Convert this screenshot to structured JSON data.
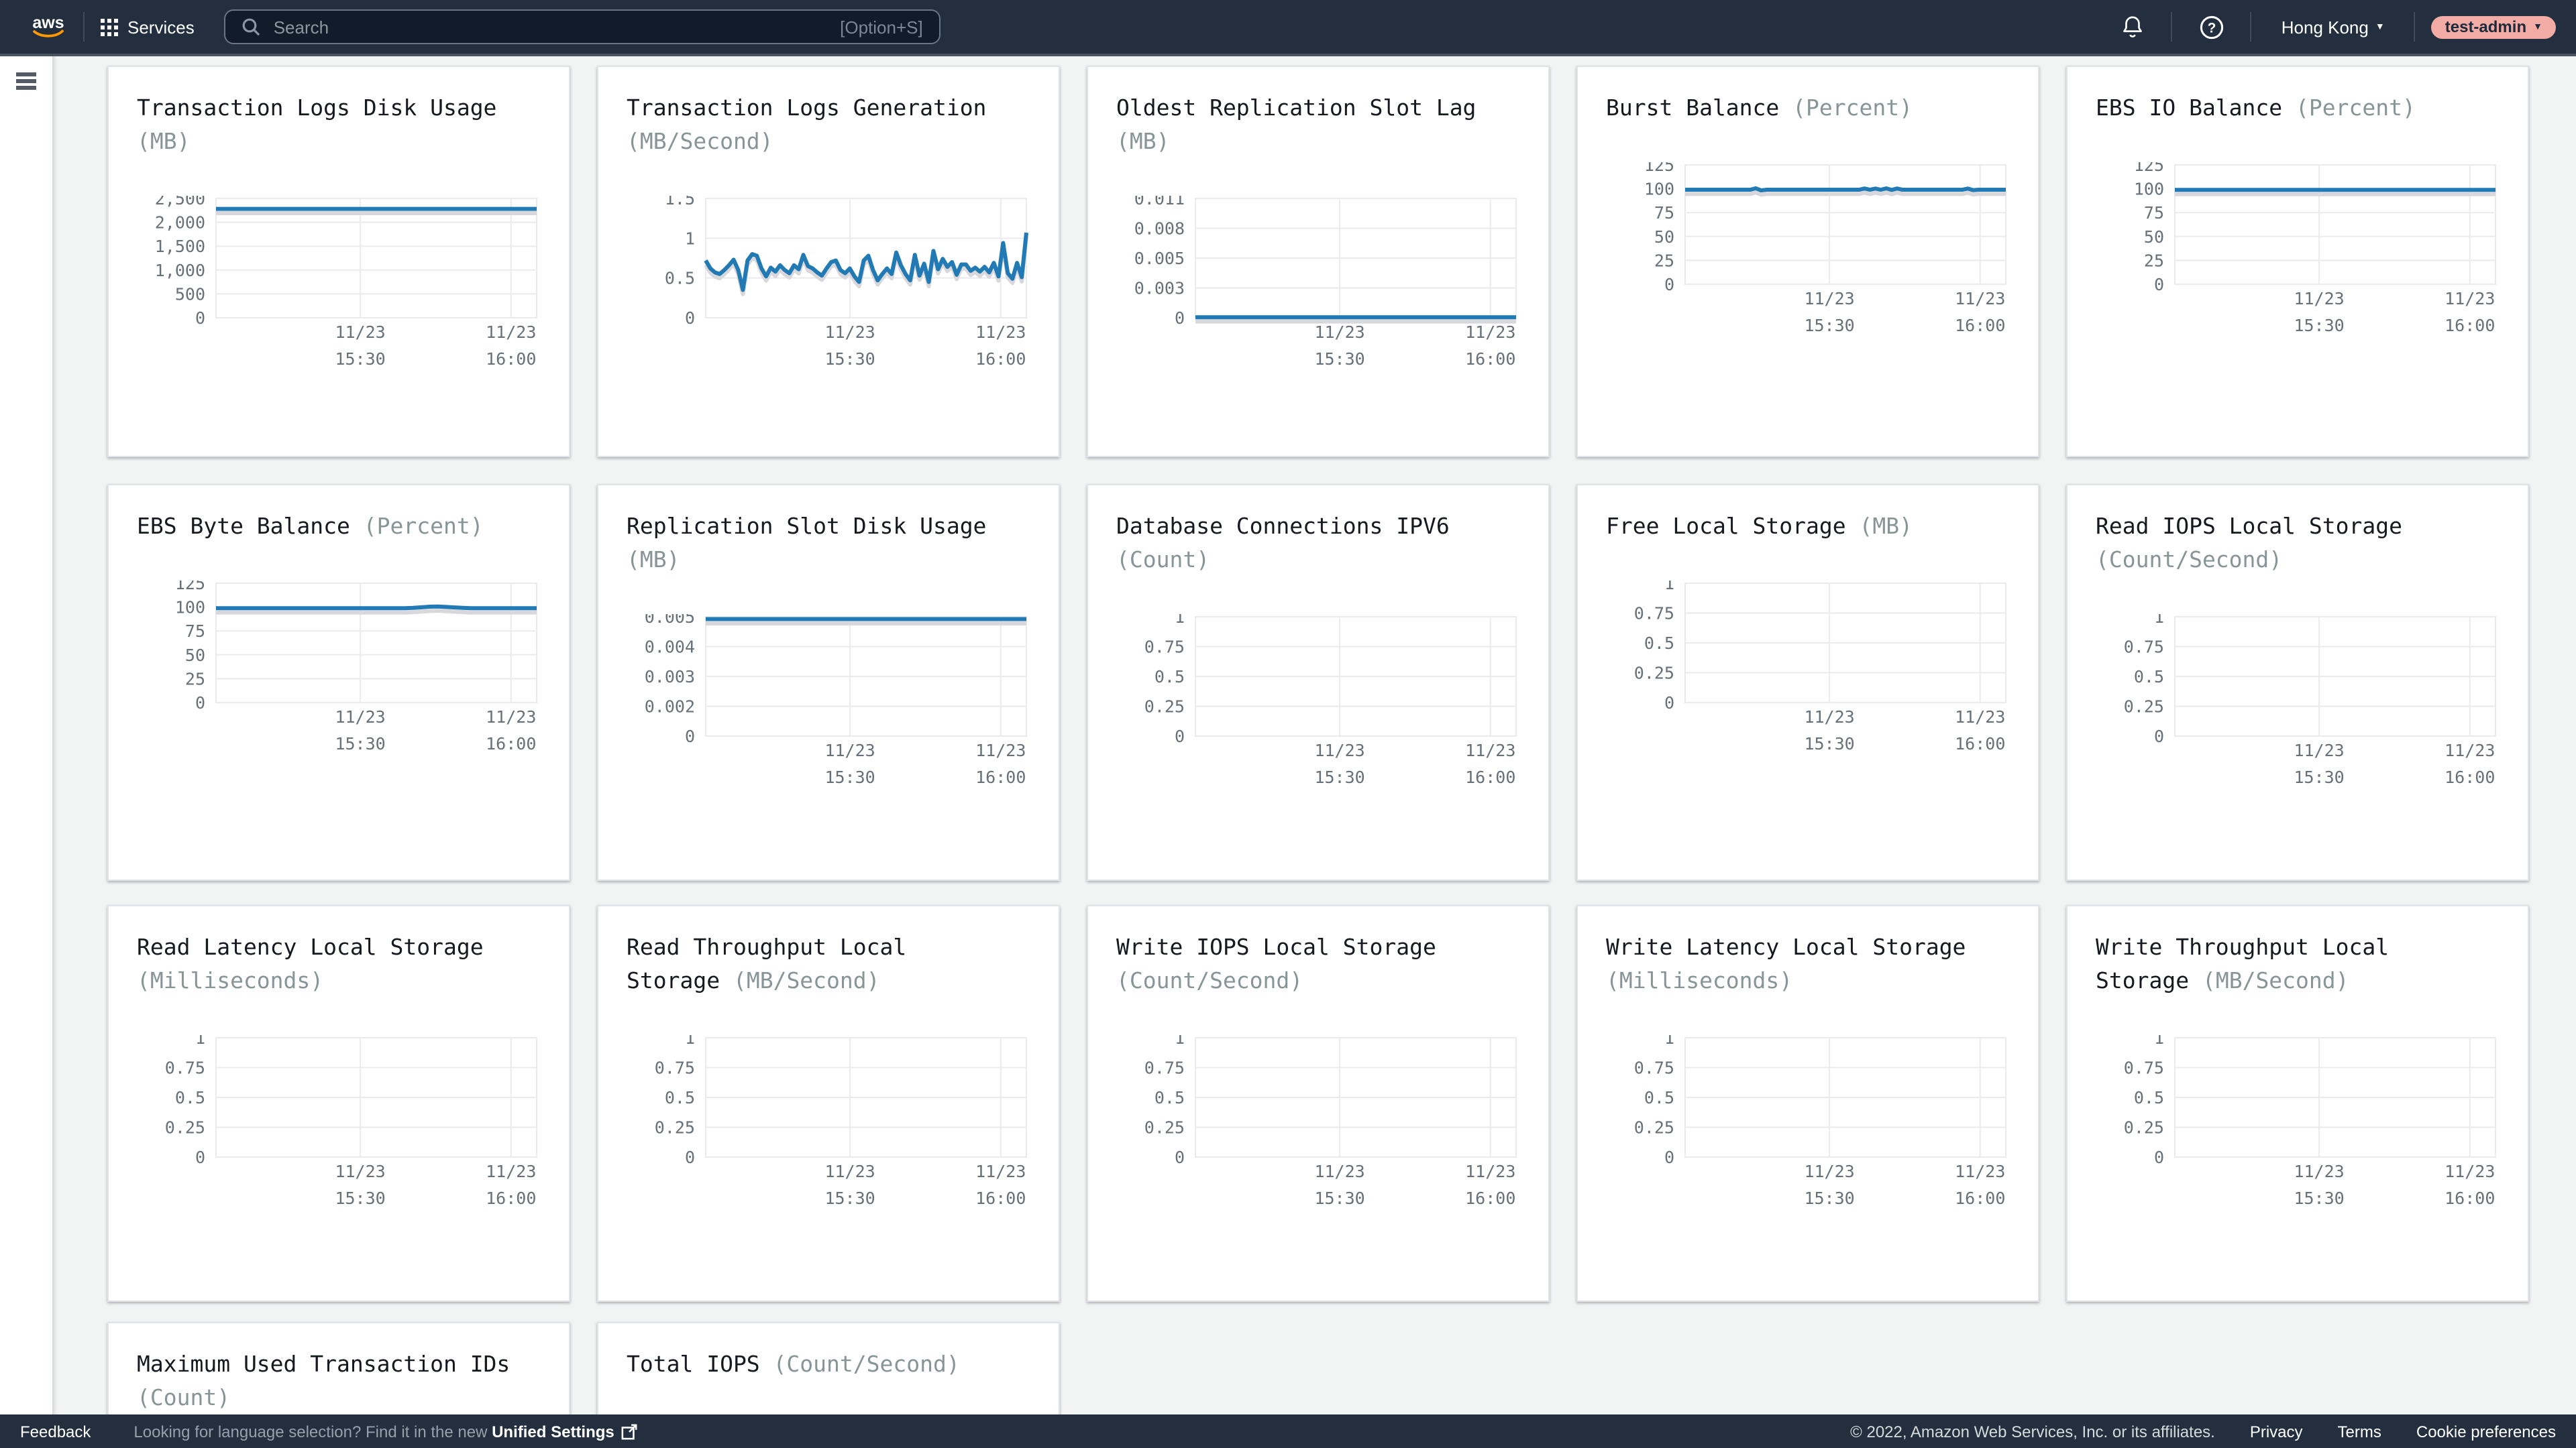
{
  "nav": {
    "logo": "aws",
    "services_label": "Services",
    "search_placeholder": "Search",
    "search_shortcut": "[Option+S]",
    "region_label": "Hong Kong",
    "account_label": "test-admin",
    "region_caret": "▼",
    "account_caret": "▼"
  },
  "footer": {
    "feedback_label": "Feedback",
    "language_notice": "Looking for language selection? Find it in the new ",
    "language_link": "Unified Settings",
    "copyright": "© 2022, Amazon Web Services, Inc. or its affiliates.",
    "privacy_label": "Privacy",
    "terms_label": "Terms",
    "cookie_label": "Cookie preferences"
  },
  "colors": {
    "nav_bg": "#232f3e",
    "line_blue": "#227ab5",
    "line_shadow": "#d8d8dc",
    "grid": "#e9ebed",
    "tick_text": "#687078",
    "title_text": "#16191f",
    "unit_text": "#879596",
    "badge_pink": "#f2aba5",
    "content_bg": "#f2f3f3"
  },
  "chart_data": [
    {
      "type": "line",
      "title": "Transaction Logs Disk Usage",
      "unit": "(MB)",
      "ytick_labels": [
        "2,500",
        "2,000",
        "1,500",
        "1,000",
        "500",
        "0"
      ],
      "ytick_values": [
        2500,
        2000,
        1500,
        1000,
        500,
        0
      ],
      "x_labels": [
        [
          "11/23",
          "15:30"
        ],
        [
          "11/23",
          "16:00"
        ]
      ],
      "series": [
        {
          "name": "value",
          "values": [
            2280,
            2280
          ]
        }
      ]
    },
    {
      "type": "line",
      "title": "Transaction Logs Generation",
      "unit": "(MB/Second)",
      "ytick_labels": [
        "1.5",
        "1",
        "0.5",
        "0"
      ],
      "ytick_values": [
        1.5,
        1,
        0.5,
        0
      ],
      "x_labels": [
        [
          "11/23",
          "15:30"
        ],
        [
          "11/23",
          "16:00"
        ]
      ],
      "series": [
        {
          "name": "value",
          "values": [
            0.72,
            0.62,
            0.57,
            0.55,
            0.6,
            0.66,
            0.73,
            0.6,
            0.35,
            0.72,
            0.8,
            0.78,
            0.62,
            0.52,
            0.63,
            0.58,
            0.66,
            0.6,
            0.56,
            0.66,
            0.61,
            0.79,
            0.65,
            0.62,
            0.57,
            0.53,
            0.62,
            0.7,
            0.72,
            0.6,
            0.56,
            0.62,
            0.52,
            0.45,
            0.72,
            0.78,
            0.6,
            0.47,
            0.55,
            0.62,
            0.55,
            0.82,
            0.66,
            0.55,
            0.47,
            0.79,
            0.53,
            0.68,
            0.45,
            0.84,
            0.61,
            0.74,
            0.64,
            0.7,
            0.54,
            0.67,
            0.67,
            0.59,
            0.63,
            0.58,
            0.64,
            0.57,
            0.69,
            0.52,
            0.94,
            0.56,
            0.49,
            0.69,
            0.51,
            1.07
          ]
        }
      ]
    },
    {
      "type": "line",
      "title": "Oldest Replication Slot Lag",
      "unit": "(MB)",
      "ytick_labels": [
        "0.011",
        "0.008",
        "0.005",
        "0.003",
        "0"
      ],
      "ytick_values": [
        0.011,
        0.008,
        0.005,
        0.003,
        0
      ],
      "x_labels": [
        [
          "11/23",
          "15:30"
        ],
        [
          "11/23",
          "16:00"
        ]
      ],
      "series": [
        {
          "name": "value",
          "values": [
            5e-05,
            5e-05
          ]
        }
      ]
    },
    {
      "type": "line",
      "title": "Burst Balance",
      "unit": "(Percent)",
      "ytick_labels": [
        "125",
        "100",
        "75",
        "50",
        "25",
        "0"
      ],
      "ytick_values": [
        125,
        100,
        75,
        50,
        25,
        0
      ],
      "x_labels": [
        [
          "11/23",
          "15:30"
        ],
        [
          "11/23",
          "16:00"
        ]
      ],
      "series": [
        {
          "name": "value",
          "values": [
            99,
            99,
            99,
            99,
            99,
            99,
            99,
            99,
            99,
            99,
            99,
            99,
            99,
            100.5,
            98.3,
            99,
            99,
            99,
            99,
            99,
            99,
            99,
            99,
            99,
            99,
            99,
            99,
            99,
            99,
            99,
            99,
            99,
            99,
            100.3,
            99,
            100.2,
            99,
            100.4,
            98.8,
            100.3,
            99,
            99,
            99,
            99,
            99,
            99,
            99,
            99,
            99,
            99,
            99,
            99,
            100.2,
            98.6,
            99,
            99,
            99,
            99,
            99,
            99
          ]
        }
      ]
    },
    {
      "type": "line",
      "title": "EBS IO Balance",
      "unit": "(Percent)",
      "ytick_labels": [
        "125",
        "100",
        "75",
        "50",
        "25",
        "0"
      ],
      "ytick_values": [
        125,
        100,
        75,
        50,
        25,
        0
      ],
      "x_labels": [
        [
          "11/23",
          "15:30"
        ],
        [
          "11/23",
          "16:00"
        ]
      ],
      "series": [
        {
          "name": "value",
          "values": [
            98.8,
            98.8
          ]
        }
      ]
    },
    {
      "type": "line",
      "title": "EBS Byte Balance",
      "unit": "(Percent)",
      "ytick_labels": [
        "125",
        "100",
        "75",
        "50",
        "25",
        "0"
      ],
      "ytick_values": [
        125,
        100,
        75,
        50,
        25,
        0
      ],
      "x_labels": [
        [
          "11/23",
          "15:30"
        ],
        [
          "11/23",
          "16:00"
        ]
      ],
      "series": [
        {
          "name": "value",
          "values": [
            98.8,
            98.8,
            98.8,
            98.8,
            98.8,
            98.8,
            98.8,
            98.8,
            98.8,
            98.8,
            98.8,
            98.8,
            98.8,
            98.8,
            98.8,
            98.8,
            98.8,
            98.8,
            98.8,
            98.8,
            98.8,
            98.8,
            98.8,
            98.8,
            99.2,
            99.8,
            100.4,
            100.6,
            100.2,
            99.6,
            99.2,
            98.8,
            98.8,
            98.8,
            98.8,
            98.8,
            98.8,
            98.8,
            98.8,
            98.8
          ]
        }
      ]
    },
    {
      "type": "line",
      "title": "Replication Slot Disk Usage",
      "unit": "(MB)",
      "ytick_labels": [
        "0.005",
        "0.004",
        "0.003",
        "0.002",
        "0"
      ],
      "ytick_values": [
        0.005,
        0.004,
        0.003,
        0.002,
        0
      ],
      "x_labels": [
        [
          "11/23",
          "15:30"
        ],
        [
          "11/23",
          "16:00"
        ]
      ],
      "series": [
        {
          "name": "value",
          "values": [
            0.0049,
            0.0049
          ]
        }
      ]
    },
    {
      "type": "line",
      "title": "Database Connections IPV6",
      "unit": "(Count)",
      "ytick_labels": [
        "1",
        "0.75",
        "0.5",
        "0.25",
        "0"
      ],
      "ytick_values": [
        1,
        0.75,
        0.5,
        0.25,
        0
      ],
      "x_labels": [
        [
          "11/23",
          "15:30"
        ],
        [
          "11/23",
          "16:00"
        ]
      ],
      "series": []
    },
    {
      "type": "line",
      "title": "Free Local Storage",
      "unit": "(MB)",
      "ytick_labels": [
        "1",
        "0.75",
        "0.5",
        "0.25",
        "0"
      ],
      "ytick_values": [
        1,
        0.75,
        0.5,
        0.25,
        0
      ],
      "x_labels": [
        [
          "11/23",
          "15:30"
        ],
        [
          "11/23",
          "16:00"
        ]
      ],
      "series": []
    },
    {
      "type": "line",
      "title": "Read IOPS Local Storage",
      "unit": "(Count/Second)",
      "ytick_labels": [
        "1",
        "0.75",
        "0.5",
        "0.25",
        "0"
      ],
      "ytick_values": [
        1,
        0.75,
        0.5,
        0.25,
        0
      ],
      "x_labels": [
        [
          "11/23",
          "15:30"
        ],
        [
          "11/23",
          "16:00"
        ]
      ],
      "series": []
    },
    {
      "type": "line",
      "title": "Read Latency Local Storage",
      "unit": "(Milliseconds)",
      "ytick_labels": [
        "1",
        "0.75",
        "0.5",
        "0.25",
        "0"
      ],
      "ytick_values": [
        1,
        0.75,
        0.5,
        0.25,
        0
      ],
      "x_labels": [
        [
          "11/23",
          "15:30"
        ],
        [
          "11/23",
          "16:00"
        ]
      ],
      "series": []
    },
    {
      "type": "line",
      "title": "Read Throughput Local Storage",
      "unit": "(MB/Second)",
      "ytick_labels": [
        "1",
        "0.75",
        "0.5",
        "0.25",
        "0"
      ],
      "ytick_values": [
        1,
        0.75,
        0.5,
        0.25,
        0
      ],
      "x_labels": [
        [
          "11/23",
          "15:30"
        ],
        [
          "11/23",
          "16:00"
        ]
      ],
      "series": []
    },
    {
      "type": "line",
      "title": "Write IOPS Local Storage",
      "unit": "(Count/Second)",
      "ytick_labels": [
        "1",
        "0.75",
        "0.5",
        "0.25",
        "0"
      ],
      "ytick_values": [
        1,
        0.75,
        0.5,
        0.25,
        0
      ],
      "x_labels": [
        [
          "11/23",
          "15:30"
        ],
        [
          "11/23",
          "16:00"
        ]
      ],
      "series": []
    },
    {
      "type": "line",
      "title": "Write Latency Local Storage",
      "unit": "(Milliseconds)",
      "ytick_labels": [
        "1",
        "0.75",
        "0.5",
        "0.25",
        "0"
      ],
      "ytick_values": [
        1,
        0.75,
        0.5,
        0.25,
        0
      ],
      "x_labels": [
        [
          "11/23",
          "15:30"
        ],
        [
          "11/23",
          "16:00"
        ]
      ],
      "series": []
    },
    {
      "type": "line",
      "title": "Write Throughput Local Storage",
      "unit": "(MB/Second)",
      "ytick_labels": [
        "1",
        "0.75",
        "0.5",
        "0.25",
        "0"
      ],
      "ytick_values": [
        1,
        0.75,
        0.5,
        0.25,
        0
      ],
      "x_labels": [
        [
          "11/23",
          "15:30"
        ],
        [
          "11/23",
          "16:00"
        ]
      ],
      "series": []
    },
    {
      "type": "line",
      "title": "Maximum Used Transaction IDs",
      "unit": "(Count)",
      "truncated": true,
      "ytick_labels": [],
      "ytick_values": [],
      "x_labels": [],
      "series": []
    },
    {
      "type": "line",
      "title": "Total IOPS",
      "unit": "(Count/Second)",
      "truncated": true,
      "ytick_labels": [],
      "ytick_values": [],
      "x_labels": [],
      "series": []
    }
  ]
}
